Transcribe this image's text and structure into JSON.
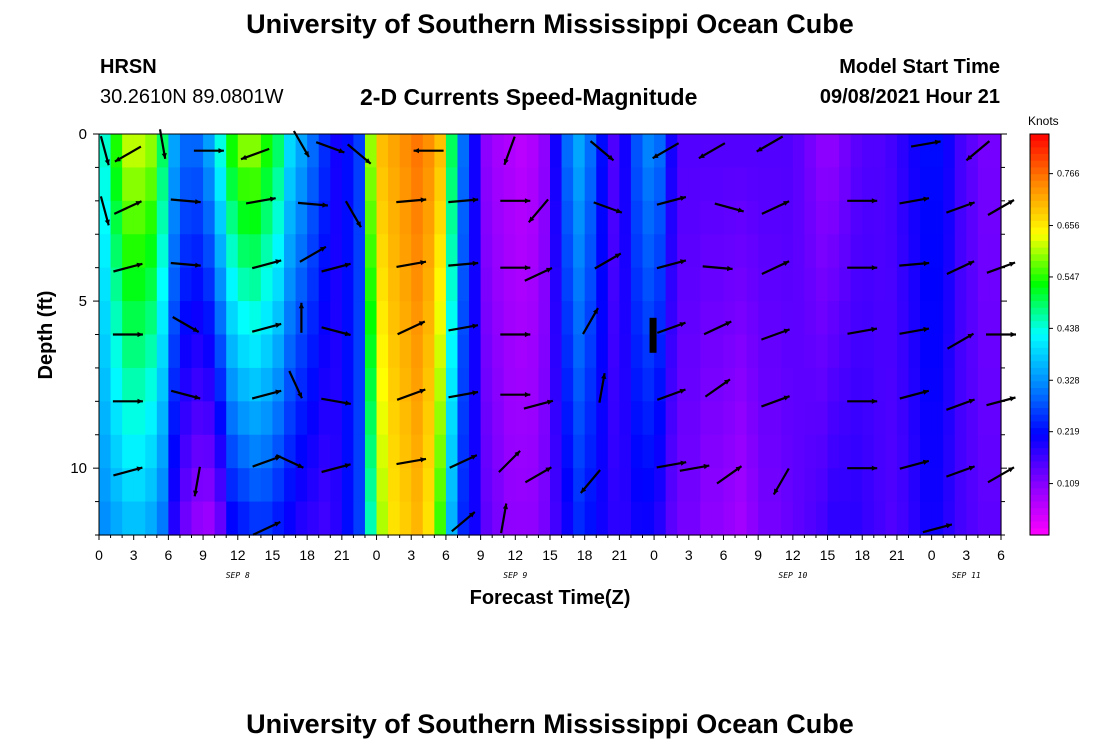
{
  "page": {
    "title_top": "University of Southern Mississippi Ocean Cube",
    "title_bottom": "University of Southern Mississippi Ocean Cube",
    "station": "HRSN",
    "location": "30.2610N  89.0801W",
    "subtitle": "2-D Currents Speed-Magnitude",
    "model_start_label": "Model Start Time",
    "model_start_value": "09/08/2021 Hour 21"
  },
  "chart_data": {
    "type": "heatmap",
    "xlabel": "Forecast Time(Z)",
    "ylabel": "Depth (ft)",
    "x_hours": [
      0,
      78
    ],
    "y_depth_ft": [
      0,
      12
    ],
    "y_ticks": [
      0,
      5,
      10
    ],
    "x_tick_labels": [
      "0",
      "3",
      "6",
      "9",
      "12",
      "15",
      "18",
      "21",
      "0",
      "3",
      "6",
      "9",
      "12",
      "15",
      "18",
      "21",
      "0",
      "3",
      "6",
      "9",
      "12",
      "15",
      "18",
      "21",
      "0",
      "3",
      "6"
    ],
    "date_labels": [
      {
        "hour": 12,
        "text": "SEP 8"
      },
      {
        "hour": 36,
        "text": "SEP 9"
      },
      {
        "hour": 60,
        "text": "SEP 10"
      },
      {
        "hour": 75,
        "text": "SEP 11"
      }
    ],
    "colorbar": {
      "unit": "Knots",
      "ticks": [
        "0.766",
        "0.656",
        "0.547",
        "0.438",
        "0.328",
        "0.219",
        "0.109"
      ],
      "tick_values": [
        0.766,
        0.656,
        0.547,
        0.438,
        0.328,
        0.219,
        0.109
      ],
      "range": [
        0.0,
        0.85
      ],
      "colors": [
        "#ff00ff",
        "#8800ff",
        "#0000ff",
        "#0088ff",
        "#00ffff",
        "#00ff00",
        "#ffff00",
        "#ff8800",
        "#ff0000"
      ]
    },
    "speed_profile": {
      "hour": [
        0,
        1,
        2,
        3,
        4,
        5,
        6,
        7,
        8,
        9,
        10,
        11,
        12,
        13,
        14,
        15,
        16,
        17,
        18,
        19,
        20,
        21,
        22,
        23,
        24,
        25,
        26,
        27,
        28,
        29,
        30,
        31,
        32,
        33,
        34,
        35,
        36,
        37,
        38,
        39,
        40,
        41,
        42,
        43,
        44,
        45,
        46,
        47,
        48,
        49,
        50,
        51,
        52,
        53,
        54,
        55,
        56,
        57,
        58,
        59,
        60,
        61,
        62,
        63,
        64,
        65,
        66,
        67,
        68,
        69,
        70,
        71,
        72,
        73,
        74,
        75,
        76,
        77,
        78
      ],
      "surface_knots": [
        0.45,
        0.55,
        0.62,
        0.62,
        0.6,
        0.5,
        0.35,
        0.3,
        0.3,
        0.35,
        0.45,
        0.55,
        0.6,
        0.6,
        0.55,
        0.5,
        0.4,
        0.35,
        0.3,
        0.25,
        0.2,
        0.22,
        0.26,
        0.6,
        0.7,
        0.72,
        0.74,
        0.76,
        0.74,
        0.7,
        0.5,
        0.3,
        0.2,
        0.1,
        0.08,
        0.07,
        0.06,
        0.07,
        0.1,
        0.2,
        0.3,
        0.35,
        0.3,
        0.22,
        0.15,
        0.2,
        0.28,
        0.32,
        0.3,
        0.2,
        0.15,
        0.15,
        0.15,
        0.15,
        0.15,
        0.15,
        0.15,
        0.15,
        0.15,
        0.15,
        0.14,
        0.12,
        0.1,
        0.1,
        0.12,
        0.14,
        0.15,
        0.15,
        0.16,
        0.18,
        0.2,
        0.22,
        0.22,
        0.2,
        0.16,
        0.14,
        0.12,
        0.12,
        0.1
      ],
      "bottom_knots": [
        0.32,
        0.34,
        0.36,
        0.36,
        0.34,
        0.3,
        0.18,
        0.12,
        0.09,
        0.08,
        0.12,
        0.2,
        0.22,
        0.24,
        0.24,
        0.22,
        0.2,
        0.18,
        0.17,
        0.16,
        0.18,
        0.22,
        0.26,
        0.45,
        0.6,
        0.66,
        0.68,
        0.7,
        0.66,
        0.55,
        0.35,
        0.24,
        0.2,
        0.14,
        0.12,
        0.1,
        0.1,
        0.1,
        0.12,
        0.16,
        0.2,
        0.24,
        0.22,
        0.2,
        0.18,
        0.18,
        0.2,
        0.2,
        0.18,
        0.14,
        0.12,
        0.12,
        0.1,
        0.1,
        0.09,
        0.08,
        0.1,
        0.12,
        0.12,
        0.13,
        0.14,
        0.15,
        0.16,
        0.18,
        0.18,
        0.18,
        0.17,
        0.16,
        0.15,
        0.16,
        0.18,
        0.2,
        0.2,
        0.18,
        0.16,
        0.15,
        0.14,
        0.14,
        0.12
      ]
    },
    "vectors": [
      {
        "hour": 0.5,
        "depth": 0.5,
        "angle_deg": 75
      },
      {
        "hour": 2.5,
        "depth": 0.6,
        "angle_deg": 150
      },
      {
        "hour": 5.5,
        "depth": 0.3,
        "angle_deg": 80
      },
      {
        "hour": 9.5,
        "depth": 0.5,
        "angle_deg": 0
      },
      {
        "hour": 13.5,
        "depth": 0.6,
        "angle_deg": 160
      },
      {
        "hour": 17.5,
        "depth": 0.3,
        "angle_deg": 60
      },
      {
        "hour": 20,
        "depth": 0.4,
        "angle_deg": 20
      },
      {
        "hour": 22.5,
        "depth": 0.6,
        "angle_deg": 40
      },
      {
        "hour": 28.5,
        "depth": 0.5,
        "angle_deg": 180
      },
      {
        "hour": 35.5,
        "depth": 0.5,
        "angle_deg": 110
      },
      {
        "hour": 43.5,
        "depth": 0.5,
        "angle_deg": 40
      },
      {
        "hour": 49,
        "depth": 0.5,
        "angle_deg": 150
      },
      {
        "hour": 53,
        "depth": 0.5,
        "angle_deg": 150
      },
      {
        "hour": 58,
        "depth": 0.3,
        "angle_deg": 150
      },
      {
        "hour": 71.5,
        "depth": 0.3,
        "angle_deg": -10
      },
      {
        "hour": 76,
        "depth": 0.5,
        "angle_deg": 140
      },
      {
        "hour": 0.5,
        "depth": 2.3,
        "angle_deg": 75
      },
      {
        "hour": 2.5,
        "depth": 2.2,
        "angle_deg": -25
      },
      {
        "hour": 7.5,
        "depth": 2,
        "angle_deg": 5
      },
      {
        "hour": 14,
        "depth": 2,
        "angle_deg": -10
      },
      {
        "hour": 18.5,
        "depth": 2.1,
        "angle_deg": 5
      },
      {
        "hour": 22,
        "depth": 2.4,
        "angle_deg": 60
      },
      {
        "hour": 27,
        "depth": 2,
        "angle_deg": -5
      },
      {
        "hour": 31.5,
        "depth": 2,
        "angle_deg": -5
      },
      {
        "hour": 36,
        "depth": 2,
        "angle_deg": 0
      },
      {
        "hour": 38,
        "depth": 2.3,
        "angle_deg": 130
      },
      {
        "hour": 44,
        "depth": 2.2,
        "angle_deg": 20
      },
      {
        "hour": 49.5,
        "depth": 2,
        "angle_deg": -15
      },
      {
        "hour": 54.5,
        "depth": 2.2,
        "angle_deg": 15
      },
      {
        "hour": 58.5,
        "depth": 2.2,
        "angle_deg": -25
      },
      {
        "hour": 66,
        "depth": 2,
        "angle_deg": 0
      },
      {
        "hour": 70.5,
        "depth": 2,
        "angle_deg": -10
      },
      {
        "hour": 74.5,
        "depth": 2.2,
        "angle_deg": -20
      },
      {
        "hour": 78,
        "depth": 2.2,
        "angle_deg": -30
      },
      {
        "hour": 2.5,
        "depth": 4,
        "angle_deg": -15
      },
      {
        "hour": 7.5,
        "depth": 3.9,
        "angle_deg": 5
      },
      {
        "hour": 14.5,
        "depth": 3.9,
        "angle_deg": -15
      },
      {
        "hour": 18.5,
        "depth": 3.6,
        "angle_deg": -30
      },
      {
        "hour": 20.5,
        "depth": 4,
        "angle_deg": -15
      },
      {
        "hour": 27,
        "depth": 3.9,
        "angle_deg": -10
      },
      {
        "hour": 31.5,
        "depth": 3.9,
        "angle_deg": -5
      },
      {
        "hour": 36,
        "depth": 4,
        "angle_deg": 0
      },
      {
        "hour": 38,
        "depth": 4.2,
        "angle_deg": -25
      },
      {
        "hour": 44,
        "depth": 3.8,
        "angle_deg": -30
      },
      {
        "hour": 49.5,
        "depth": 3.9,
        "angle_deg": -15
      },
      {
        "hour": 53.5,
        "depth": 4,
        "angle_deg": 5
      },
      {
        "hour": 58.5,
        "depth": 4,
        "angle_deg": -25
      },
      {
        "hour": 66,
        "depth": 4,
        "angle_deg": 0
      },
      {
        "hour": 70.5,
        "depth": 3.9,
        "angle_deg": -5
      },
      {
        "hour": 74.5,
        "depth": 4,
        "angle_deg": -25
      },
      {
        "hour": 78,
        "depth": 4,
        "angle_deg": -20
      },
      {
        "hour": 2.5,
        "depth": 6,
        "angle_deg": 0
      },
      {
        "hour": 7.5,
        "depth": 5.7,
        "angle_deg": 30
      },
      {
        "hour": 14.5,
        "depth": 5.8,
        "angle_deg": -15
      },
      {
        "hour": 17.5,
        "depth": 5.5,
        "angle_deg": -90
      },
      {
        "hour": 20.5,
        "depth": 5.9,
        "angle_deg": 15
      },
      {
        "hour": 27,
        "depth": 5.8,
        "angle_deg": -25
      },
      {
        "hour": 31.5,
        "depth": 5.8,
        "angle_deg": -10
      },
      {
        "hour": 36,
        "depth": 6,
        "angle_deg": 0
      },
      {
        "hour": 42.5,
        "depth": 5.6,
        "angle_deg": -60
      },
      {
        "hour": 49.5,
        "depth": 5.8,
        "angle_deg": -20
      },
      {
        "hour": 53.5,
        "depth": 5.8,
        "angle_deg": -25
      },
      {
        "hour": 58.5,
        "depth": 6,
        "angle_deg": -20
      },
      {
        "hour": 66,
        "depth": 5.9,
        "angle_deg": -10
      },
      {
        "hour": 70.5,
        "depth": 5.9,
        "angle_deg": -10
      },
      {
        "hour": 74.5,
        "depth": 6.2,
        "angle_deg": -30
      },
      {
        "hour": 78,
        "depth": 6,
        "angle_deg": 0
      },
      {
        "hour": 2.5,
        "depth": 8,
        "angle_deg": 0
      },
      {
        "hour": 7.5,
        "depth": 7.8,
        "angle_deg": 15
      },
      {
        "hour": 14.5,
        "depth": 7.8,
        "angle_deg": -15
      },
      {
        "hour": 17,
        "depth": 7.5,
        "angle_deg": 65
      },
      {
        "hour": 20.5,
        "depth": 8,
        "angle_deg": 10
      },
      {
        "hour": 27,
        "depth": 7.8,
        "angle_deg": -20
      },
      {
        "hour": 31.5,
        "depth": 7.8,
        "angle_deg": -10
      },
      {
        "hour": 36,
        "depth": 7.8,
        "angle_deg": 0
      },
      {
        "hour": 38,
        "depth": 8.1,
        "angle_deg": -15
      },
      {
        "hour": 43.5,
        "depth": 7.6,
        "angle_deg": -80
      },
      {
        "hour": 49.5,
        "depth": 7.8,
        "angle_deg": -20
      },
      {
        "hour": 53.5,
        "depth": 7.6,
        "angle_deg": -35
      },
      {
        "hour": 58.5,
        "depth": 8,
        "angle_deg": -20
      },
      {
        "hour": 66,
        "depth": 8,
        "angle_deg": 0
      },
      {
        "hour": 70.5,
        "depth": 7.8,
        "angle_deg": -15
      },
      {
        "hour": 74.5,
        "depth": 8.1,
        "angle_deg": -20
      },
      {
        "hour": 78,
        "depth": 8,
        "angle_deg": -15
      },
      {
        "hour": 2.5,
        "depth": 10.1,
        "angle_deg": -15
      },
      {
        "hour": 8.5,
        "depth": 10.4,
        "angle_deg": 100
      },
      {
        "hour": 14.5,
        "depth": 9.8,
        "angle_deg": -20
      },
      {
        "hour": 16.5,
        "depth": 9.8,
        "angle_deg": 25
      },
      {
        "hour": 20.5,
        "depth": 10,
        "angle_deg": -15
      },
      {
        "hour": 27,
        "depth": 9.8,
        "angle_deg": -10
      },
      {
        "hour": 31.5,
        "depth": 9.8,
        "angle_deg": -25
      },
      {
        "hour": 35.5,
        "depth": 9.8,
        "angle_deg": -45
      },
      {
        "hour": 38,
        "depth": 10.2,
        "angle_deg": -30
      },
      {
        "hour": 42.5,
        "depth": 10.4,
        "angle_deg": 130
      },
      {
        "hour": 49.5,
        "depth": 9.9,
        "angle_deg": -10
      },
      {
        "hour": 51.5,
        "depth": 10,
        "angle_deg": -10
      },
      {
        "hour": 54.5,
        "depth": 10.2,
        "angle_deg": -35
      },
      {
        "hour": 59,
        "depth": 10.4,
        "angle_deg": 120
      },
      {
        "hour": 66,
        "depth": 10,
        "angle_deg": 0
      },
      {
        "hour": 70.5,
        "depth": 9.9,
        "angle_deg": -15
      },
      {
        "hour": 74.5,
        "depth": 10.1,
        "angle_deg": -20
      },
      {
        "hour": 78,
        "depth": 10.2,
        "angle_deg": -30
      },
      {
        "hour": 14.5,
        "depth": 11.8,
        "angle_deg": -25
      },
      {
        "hour": 31.5,
        "depth": 11.6,
        "angle_deg": -40
      },
      {
        "hour": 35,
        "depth": 11.5,
        "angle_deg": -80
      },
      {
        "hour": 72.5,
        "depth": 11.8,
        "angle_deg": -15
      }
    ]
  }
}
